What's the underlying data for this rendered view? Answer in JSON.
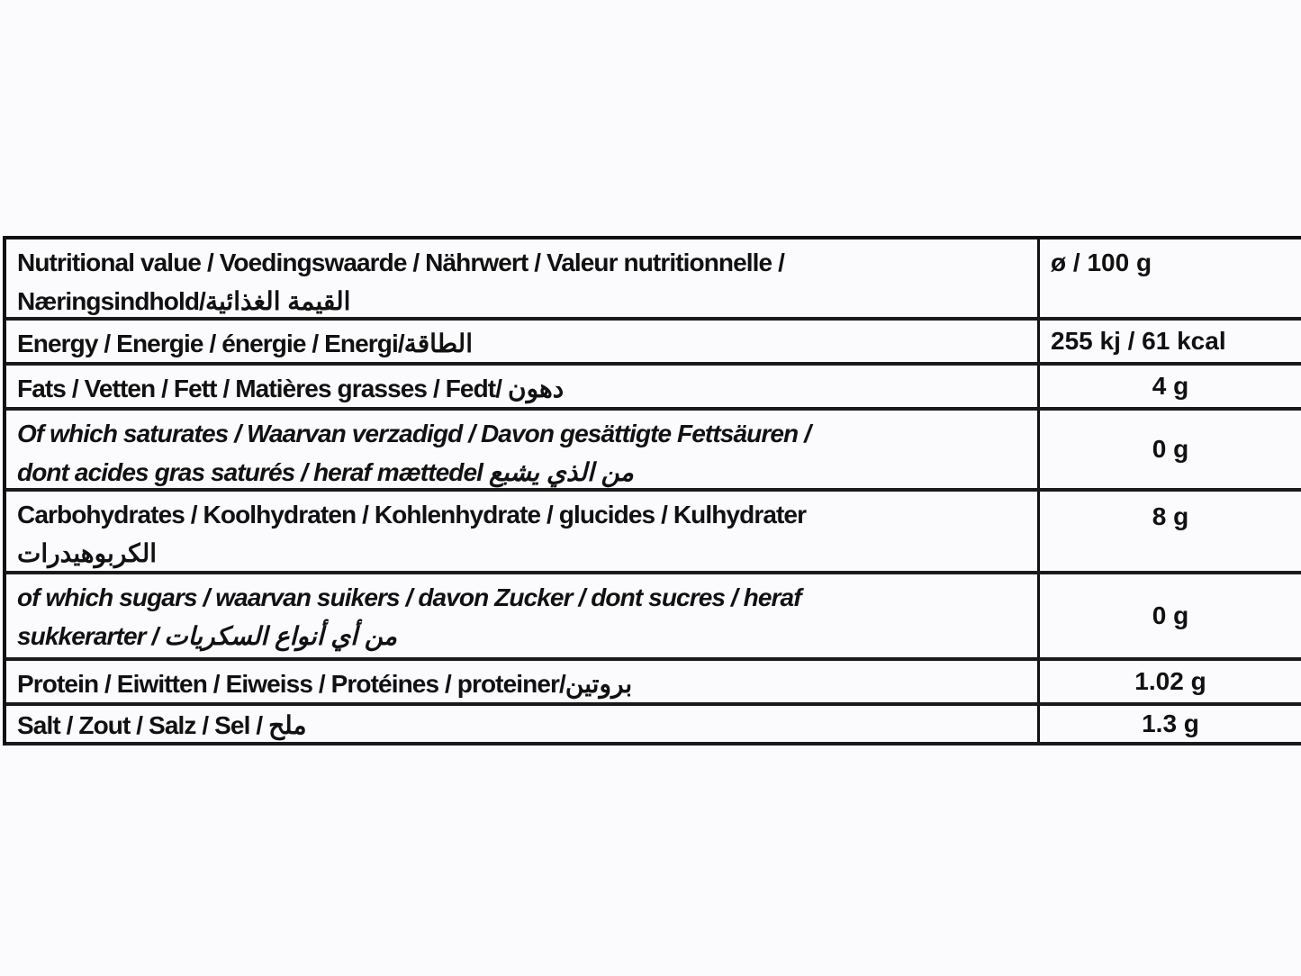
{
  "table": {
    "header": {
      "label_lines": [
        "Nutritional value / Voedingswaarde / Nährwert / Valeur nutritionnelle /",
        "Næringsindhold/القيمة الغذائية"
      ],
      "value": "ø / 100 g"
    },
    "rows": [
      {
        "label_lines": [
          "Energy / Energie / énergie  / Energi/الطاقة"
        ],
        "value": "255  kj / 61  kcal",
        "italic": false
      },
      {
        "label_lines": [
          "Fats / Vetten / Fett / Matières grasses / Fedt/ دهون"
        ],
        "value": "4 g",
        "italic": false
      },
      {
        "label_lines": [
          "Of which saturates / Waarvan verzadigd / Davon gesättigte Fettsäuren /",
          "dont acides gras saturés / heraf mættedel من الذي يشبع"
        ],
        "value": "0 g",
        "italic": true
      },
      {
        "label_lines": [
          "Carbohydrates / Koolhydraten / Kohlenhydrate / glucides / Kulhydrater",
          "الكربوهيدرات"
        ],
        "value": "8 g",
        "italic": false
      },
      {
        "label_lines": [
          "of which sugars / waarvan suikers / davon Zucker / dont sucres / heraf",
          "sukkerarter / من أي أنواع السكريات"
        ],
        "value": "0 g",
        "italic": true
      },
      {
        "label_lines": [
          "Protein / Eiwitten / Eiweiss / Protéines /  proteiner/بروتين"
        ],
        "value": "1.02 g",
        "italic": false
      },
      {
        "label_lines": [
          "Salt / Zout / Salz / Sel / ملح"
        ],
        "value": "1.3 g",
        "italic": false
      }
    ]
  }
}
